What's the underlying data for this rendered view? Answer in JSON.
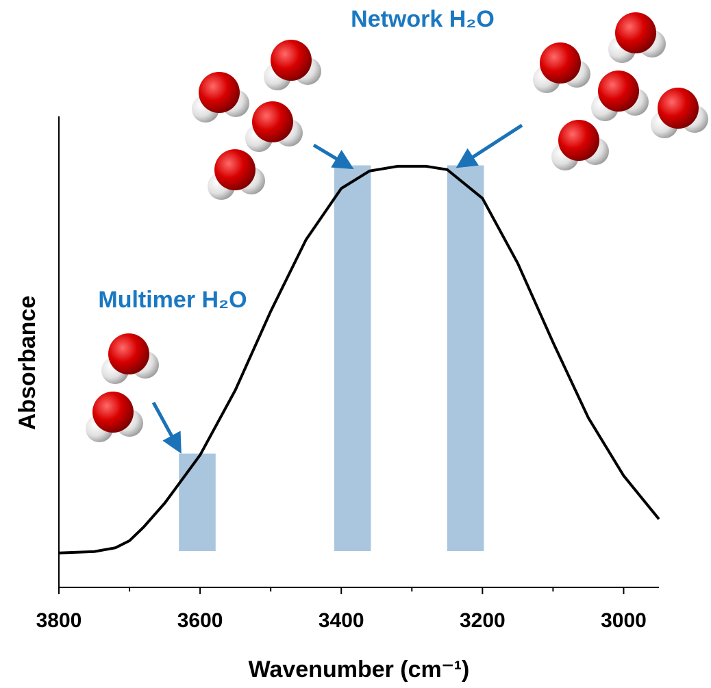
{
  "chart_data": {
    "type": "line",
    "x_label": "Wavenumber (cm⁻¹)",
    "y_label": "Absorbance",
    "annotations": [
      "Network H₂O",
      "Multimer H₂O"
    ],
    "xlim": [
      3800,
      2950
    ],
    "ylim": [
      0,
      1
    ],
    "xticks": [
      3800,
      3600,
      3400,
      3200,
      3000
    ],
    "xminorticks": [
      3700,
      3500,
      3300,
      3100
    ],
    "x": [
      3800,
      3750,
      3720,
      3700,
      3680,
      3650,
      3600,
      3550,
      3500,
      3450,
      3400,
      3360,
      3320,
      3280,
      3250,
      3200,
      3150,
      3100,
      3050,
      3000,
      2950
    ],
    "series": [
      {
        "color": "#000000",
        "values": [
          0.073,
          0.076,
          0.084,
          0.099,
          0.128,
          0.179,
          0.281,
          0.419,
          0.586,
          0.738,
          0.847,
          0.884,
          0.894,
          0.894,
          0.887,
          0.826,
          0.688,
          0.52,
          0.36,
          0.237,
          0.145
        ]
      }
    ],
    "bands": [
      {
        "xlim": [
          3630,
          3578
        ],
        "ylim": [
          0.077,
          0.284
        ]
      },
      {
        "xlim": [
          3410,
          3358
        ],
        "ylim": [
          0.077,
          0.896
        ]
      },
      {
        "xlim": [
          3250,
          3198
        ],
        "ylim": [
          0.077,
          0.896
        ]
      }
    ],
    "band_color": "#a9c6de"
  }
}
